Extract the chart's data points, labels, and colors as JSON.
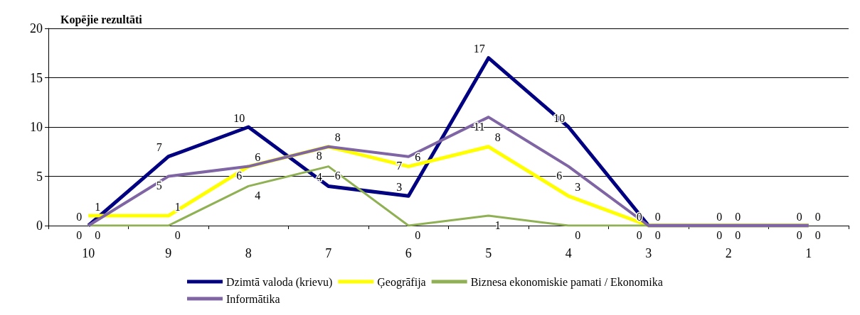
{
  "chart_data": {
    "type": "line",
    "title": "Kopējie rezultāti",
    "categories": [
      "10",
      "9",
      "8",
      "7",
      "6",
      "5",
      "4",
      "3",
      "2",
      "1"
    ],
    "series": [
      {
        "name": "Dzimtā valoda (krievu)",
        "color": "#000080",
        "values": [
          0,
          7,
          10,
          4,
          3,
          17,
          10,
          0,
          0,
          0
        ]
      },
      {
        "name": "Ģeogrāfija",
        "color": "#ffff00",
        "values": [
          1,
          1,
          6,
          8,
          6,
          8,
          3,
          0,
          0,
          0
        ]
      },
      {
        "name": "Biznesa ekonomiskie pamati / Ekonomika",
        "color": "#8fb153",
        "values": [
          0,
          0,
          4,
          6,
          0,
          1,
          0,
          0,
          0,
          0
        ]
      },
      {
        "name": "Informātika",
        "color": "#7f65a3",
        "values": [
          0,
          5,
          6,
          8,
          7,
          11,
          6,
          0,
          0,
          0
        ]
      }
    ],
    "ylim": [
      0,
      20
    ],
    "yticks": [
      0,
      5,
      10,
      15,
      20
    ],
    "grid": "y",
    "legend": "bottom",
    "data_labels": true,
    "marker": "none",
    "line_style": "solid"
  }
}
